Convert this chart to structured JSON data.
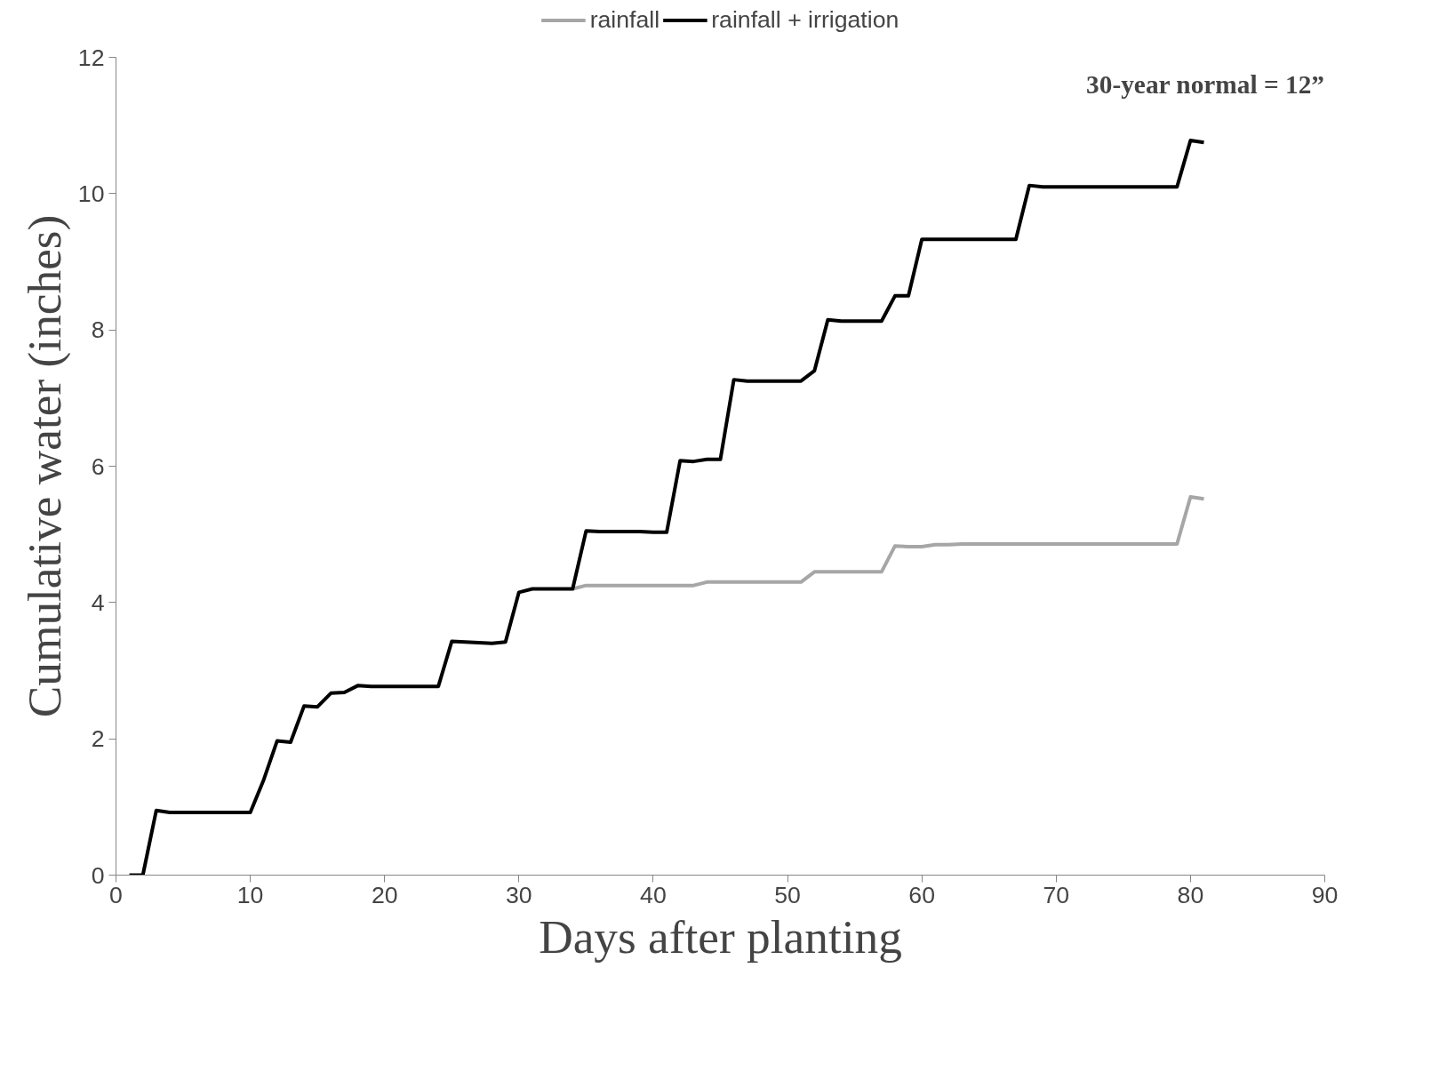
{
  "chart_data": {
    "type": "line",
    "xlabel": "Days after planting",
    "ylabel": "Cumulative water (inches)",
    "x": [
      1,
      2,
      3,
      4,
      5,
      6,
      7,
      8,
      9,
      10,
      11,
      12,
      13,
      14,
      15,
      16,
      17,
      18,
      19,
      20,
      21,
      22,
      23,
      24,
      25,
      26,
      27,
      28,
      29,
      30,
      31,
      32,
      33,
      34,
      35,
      36,
      37,
      38,
      39,
      40,
      41,
      42,
      43,
      44,
      45,
      46,
      47,
      48,
      49,
      50,
      51,
      52,
      53,
      54,
      55,
      56,
      57,
      58,
      59,
      60,
      61,
      62,
      63,
      64,
      65,
      66,
      67,
      68,
      69,
      70,
      71,
      72,
      73,
      74,
      75,
      76,
      77,
      78,
      79,
      80,
      81
    ],
    "series": [
      {
        "name": "rainfall",
        "color": "#a6a6a6",
        "values": [
          null,
          null,
          null,
          null,
          null,
          null,
          null,
          null,
          null,
          null,
          null,
          null,
          null,
          null,
          null,
          null,
          null,
          null,
          null,
          null,
          null,
          null,
          null,
          null,
          null,
          null,
          null,
          null,
          null,
          null,
          null,
          null,
          null,
          4.2,
          4.25,
          4.25,
          4.25,
          4.25,
          4.25,
          4.25,
          4.25,
          4.25,
          4.25,
          4.3,
          4.3,
          4.3,
          4.3,
          4.3,
          4.3,
          4.3,
          4.3,
          4.45,
          4.45,
          4.45,
          4.45,
          4.45,
          4.45,
          4.83,
          4.82,
          4.82,
          4.85,
          4.85,
          4.86,
          4.86,
          4.86,
          4.86,
          4.86,
          4.86,
          4.86,
          4.86,
          4.86,
          4.86,
          4.86,
          4.86,
          4.86,
          4.86,
          4.86,
          4.86,
          4.86,
          5.55,
          5.52
        ]
      },
      {
        "name": "rainfall + irrigation",
        "color": "#000000",
        "values": [
          0,
          0,
          0.95,
          0.92,
          0.92,
          0.92,
          0.92,
          0.92,
          0.92,
          0.92,
          1.4,
          1.97,
          1.95,
          2.48,
          2.47,
          2.67,
          2.68,
          2.78,
          2.77,
          2.77,
          2.77,
          2.77,
          2.77,
          2.77,
          3.43,
          3.42,
          3.41,
          3.4,
          3.42,
          4.15,
          4.2,
          4.2,
          4.2,
          4.2,
          5.05,
          5.04,
          5.04,
          5.04,
          5.04,
          5.03,
          5.03,
          6.08,
          6.07,
          6.1,
          6.1,
          7.27,
          7.25,
          7.25,
          7.25,
          7.25,
          7.25,
          7.4,
          8.15,
          8.13,
          8.13,
          8.13,
          8.13,
          8.5,
          8.5,
          9.33,
          9.33,
          9.33,
          9.33,
          9.33,
          9.33,
          9.33,
          9.33,
          10.12,
          10.1,
          10.1,
          10.1,
          10.1,
          10.1,
          10.1,
          10.1,
          10.1,
          10.1,
          10.1,
          10.1,
          10.78,
          10.75
        ]
      }
    ],
    "xlim": [
      0,
      90
    ],
    "xticks": [
      0,
      10,
      20,
      30,
      40,
      50,
      60,
      70,
      80,
      90
    ],
    "ylim": [
      0,
      12
    ],
    "yticks": [
      0,
      2,
      4,
      6,
      8,
      10,
      12
    ],
    "grid": false,
    "legend": "top",
    "marker": "none",
    "line_style": "solid",
    "annotations": [
      "30-year normal = 12”"
    ]
  }
}
